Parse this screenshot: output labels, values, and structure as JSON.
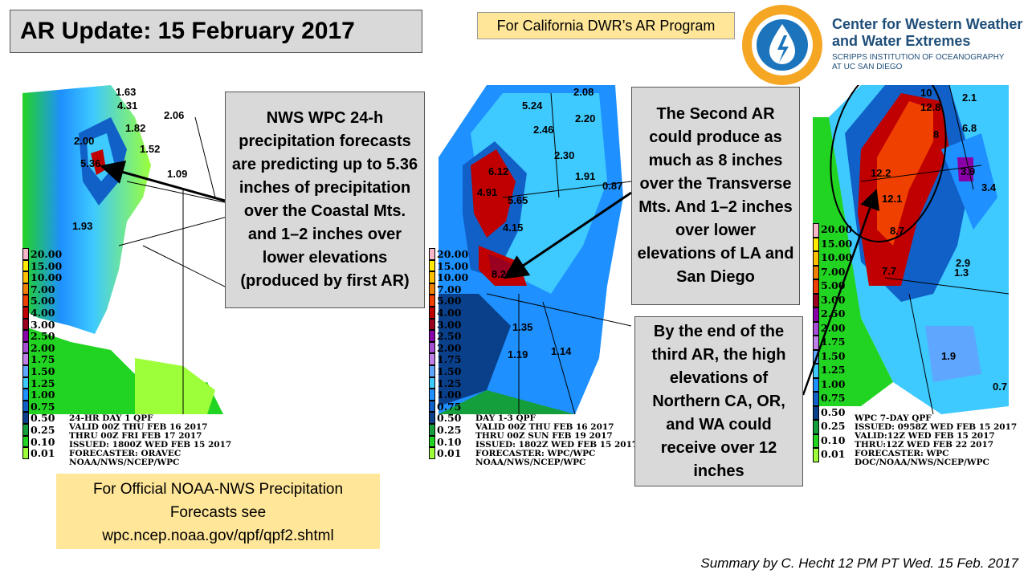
{
  "title": "AR Update: 15 February 2017",
  "program_label": "For California DWR’s AR Program",
  "logo": {
    "name_line1": "Center for Western Weather",
    "name_line2": "and Water Extremes",
    "sub_line1": "SCRIPPS INSTITUTION OF OCEANOGRAPHY",
    "sub_line2": "AT UC SAN DIEGO",
    "icon": "water-drop-icon",
    "ring_color": "#f5a623",
    "inner_color": "#1c75bc"
  },
  "callouts": {
    "first": "NWS WPC 24-h precipitation forecasts are predicting up to 5.36 inches of precipitation over the Coastal Mts. and 1–2 inches over lower elevations (produced by first AR)",
    "second": "The Second AR could produce as much as 8 inches over the Transverse Mts. And 1–2 inches over lower elevations of LA and San Diego",
    "third": "By the end of the third AR, the high elevations of Northern CA, OR, and WA could receive over 12 inches"
  },
  "official": {
    "line1": "For Official NOAA-NWS Precipitation",
    "line2": "Forecasts see",
    "line3": "wpc.ncep.noaa.gov/qpf/qpf2.shtml"
  },
  "summary": "Summary by C. Hecht 12 PM PT Wed. 15 Feb. 2017",
  "legend": {
    "labels": [
      "20.00",
      "15.00",
      "10.00",
      "7.00",
      "5.00",
      "4.00",
      "3.00",
      "2.50",
      "2.00",
      "1.75",
      "1.50",
      "1.25",
      "1.00",
      "0.75",
      "0.50",
      "0.25",
      "0.10",
      "0.01"
    ],
    "colors": [
      "#f7b7c8",
      "#ffea00",
      "#ffc000",
      "#f08000",
      "#f04000",
      "#c00000",
      "#9a0020",
      "#8a00a8",
      "#a64dd6",
      "#c07fe8",
      "#5fa6ff",
      "#3ec9ff",
      "#1e90ff",
      "#1060c8",
      "#0a3f8a",
      "#159e3c",
      "#22d422",
      "#9cff3a"
    ]
  },
  "legend_right": {
    "labels": [
      "20.00",
      "15.00",
      "10.00",
      "7.00",
      "5.00",
      "3.00",
      "2.50",
      "2.00",
      "1.75",
      "1.50",
      "1.25",
      "1.00",
      "0.75",
      "0.50",
      "0.25",
      "0.10",
      "0.01"
    ]
  },
  "maps": [
    {
      "info": [
        "24-HR DAY 1 QPF",
        "VALID 00Z THU FEB 16 2017",
        "THRU 00Z FRI FEB 17 2017",
        "ISSUED: 1800Z WED FEB 15 2017",
        "FORECASTER: ORAVEC",
        "NOAA/NWS/NCEP/WPC"
      ],
      "values": [
        "1.63",
        "4.31",
        "2.06",
        "1.82",
        "2.00",
        "1.52",
        "5.36",
        "1.09",
        "1.93"
      ]
    },
    {
      "info": [
        "DAY 1-3 QPF",
        "VALID 00Z THU FEB 16 2017",
        "THRU 00Z SUN FEB 19 2017",
        "ISSUED: 1802Z WED FEB 15 2017",
        "FORECASTER: WPC/WPC",
        "NOAA/NWS/NCEP/WPC"
      ],
      "values": [
        "2.08",
        "5.24",
        "2.20",
        "2.46",
        "2.30",
        "1.91",
        "0.87",
        "6.12",
        "4.91",
        "5.65",
        "4.15",
        "8.21",
        "1.35",
        "1.19",
        "1.14"
      ]
    },
    {
      "info": [
        "WPC 7-DAY QPF",
        "ISSUED: 0958Z WED FEB 15 2017",
        "VALID:12Z WED FEB 15 2017",
        "THRU:12Z WED FEB 22 2017",
        "FORECASTER: WPC",
        "DOC/NOAA/NWS/NCEP/WPC"
      ],
      "values": [
        "10",
        "12.8",
        "2.1",
        "8",
        "6.8",
        "12.2",
        "3.9",
        "3.4",
        "12.1",
        "8.7",
        "2.9",
        "1.3",
        "7.7",
        "1.9",
        "0.7"
      ]
    }
  ]
}
